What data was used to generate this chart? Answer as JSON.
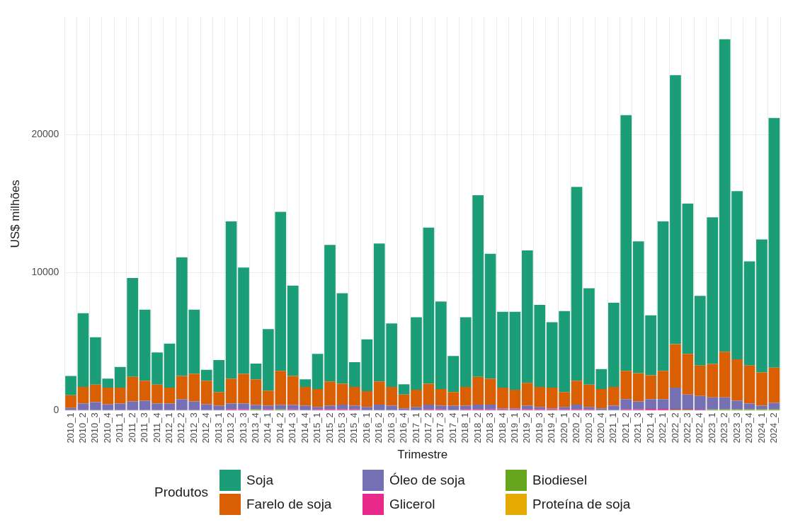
{
  "chart_data": {
    "type": "bar",
    "stacked": true,
    "xlabel": "Trimestre",
    "ylabel": "US$ milhões",
    "legend_title": "Produtos",
    "legend": "bottom",
    "grid": true,
    "categories": [
      "2010_1",
      "2010_2",
      "2010_3",
      "2010_4",
      "2011_1",
      "2011_2",
      "2011_3",
      "2011_4",
      "2012_1",
      "2012_2",
      "2012_3",
      "2012_4",
      "2013_1",
      "2013_2",
      "2013_3",
      "2013_4",
      "2014_1",
      "2014_2",
      "2014_3",
      "2014_4",
      "2015_1",
      "2015_2",
      "2015_3",
      "2015_4",
      "2016_1",
      "2016_2",
      "2016_3",
      "2016_4",
      "2017_1",
      "2017_2",
      "2017_3",
      "2017_4",
      "2018_1",
      "2018_2",
      "2018_3",
      "2018_4",
      "2019_1",
      "2019_2",
      "2019_3",
      "2019_4",
      "2020_1",
      "2020_2",
      "2020_3",
      "2020_4",
      "2021_1",
      "2021_2",
      "2021_3",
      "2021_4",
      "2022_1",
      "2022_2",
      "2022_3",
      "2022_4",
      "2023_1",
      "2023_2",
      "2023_3",
      "2023_4",
      "2024_1",
      "2024_2"
    ],
    "ylim": [
      0,
      28500
    ],
    "yticks": [
      0,
      10000,
      20000
    ],
    "series": [
      {
        "name": "Proteína de soja",
        "color": "#e6ab02",
        "values": [
          0,
          0,
          0,
          0,
          0,
          0,
          0,
          0,
          0,
          0,
          0,
          0,
          0,
          0,
          0,
          0,
          0,
          0,
          0,
          0,
          0,
          0,
          0,
          0,
          0,
          0,
          0,
          0,
          0,
          0,
          0,
          0,
          0,
          0,
          0,
          0,
          0,
          0,
          0,
          0,
          0,
          0,
          0,
          0,
          0,
          0,
          0,
          0,
          0,
          0,
          0,
          0,
          0,
          0,
          0,
          0,
          0,
          0
        ]
      },
      {
        "name": "Biodiesel",
        "color": "#66a61e",
        "values": [
          0,
          0,
          0,
          0,
          0,
          0,
          0,
          0,
          0,
          0,
          0,
          0,
          0,
          0,
          0,
          80,
          0,
          80,
          0,
          0,
          0,
          0,
          0,
          0,
          0,
          0,
          0,
          0,
          0,
          0,
          0,
          0,
          0,
          0,
          0,
          0,
          0,
          0,
          0,
          0,
          0,
          0,
          0,
          0,
          0,
          0,
          0,
          0,
          0,
          60,
          60,
          0,
          80,
          80,
          80,
          80,
          80,
          80
        ]
      },
      {
        "name": "Glicerol",
        "color": "#e7298a",
        "values": [
          0,
          0,
          0,
          0,
          0,
          0,
          0,
          0,
          0,
          0,
          0,
          0,
          0,
          80,
          80,
          0,
          80,
          0,
          80,
          0,
          80,
          80,
          80,
          80,
          0,
          0,
          0,
          0,
          0,
          80,
          80,
          0,
          80,
          80,
          80,
          80,
          80,
          80,
          80,
          80,
          80,
          80,
          80,
          0,
          0,
          80,
          80,
          120,
          120,
          60,
          60,
          60,
          0,
          0,
          0,
          0,
          0,
          0
        ]
      },
      {
        "name": "Óleo de soja",
        "color": "#7570b3",
        "values": [
          180,
          500,
          600,
          450,
          500,
          650,
          700,
          500,
          500,
          820,
          650,
          450,
          350,
          420,
          420,
          320,
          270,
          320,
          320,
          350,
          170,
          270,
          340,
          270,
          250,
          420,
          350,
          150,
          250,
          340,
          270,
          350,
          270,
          340,
          340,
          70,
          70,
          270,
          170,
          70,
          170,
          340,
          170,
          150,
          350,
          740,
          570,
          700,
          700,
          1530,
          1030,
          990,
          870,
          870,
          620,
          420,
          270,
          470
        ]
      },
      {
        "name": "Farelo de soja",
        "color": "#d95f02",
        "values": [
          920,
          1200,
          1270,
          1200,
          1150,
          1780,
          1450,
          1370,
          1150,
          1680,
          2000,
          1700,
          980,
          1800,
          2150,
          1850,
          1080,
          2470,
          2100,
          1350,
          1300,
          1750,
          1510,
          1350,
          1150,
          1680,
          1350,
          1000,
          1250,
          1510,
          1200,
          980,
          1350,
          2010,
          1880,
          1500,
          1350,
          1650,
          1450,
          1500,
          1080,
          1730,
          1620,
          1400,
          1350,
          2050,
          2050,
          1730,
          2050,
          3150,
          2950,
          2200,
          2420,
          3300,
          3000,
          2750,
          2410,
          2550
        ]
      },
      {
        "name": "Soja",
        "color": "#1b9e77",
        "values": [
          1400,
          5350,
          3430,
          650,
          1500,
          7170,
          5150,
          2330,
          3200,
          8600,
          4650,
          800,
          2320,
          11400,
          7700,
          1150,
          4470,
          11530,
          6550,
          550,
          2550,
          9900,
          6570,
          1800,
          3750,
          10000,
          4600,
          750,
          5250,
          11320,
          6350,
          2620,
          5050,
          13170,
          9050,
          5500,
          5650,
          9600,
          5950,
          4750,
          5870,
          14050,
          6980,
          1450,
          6100,
          18530,
          9550,
          4350,
          10830,
          19500,
          10900,
          5050,
          10630,
          22650,
          12200,
          7550,
          9640,
          18100
        ]
      }
    ]
  }
}
